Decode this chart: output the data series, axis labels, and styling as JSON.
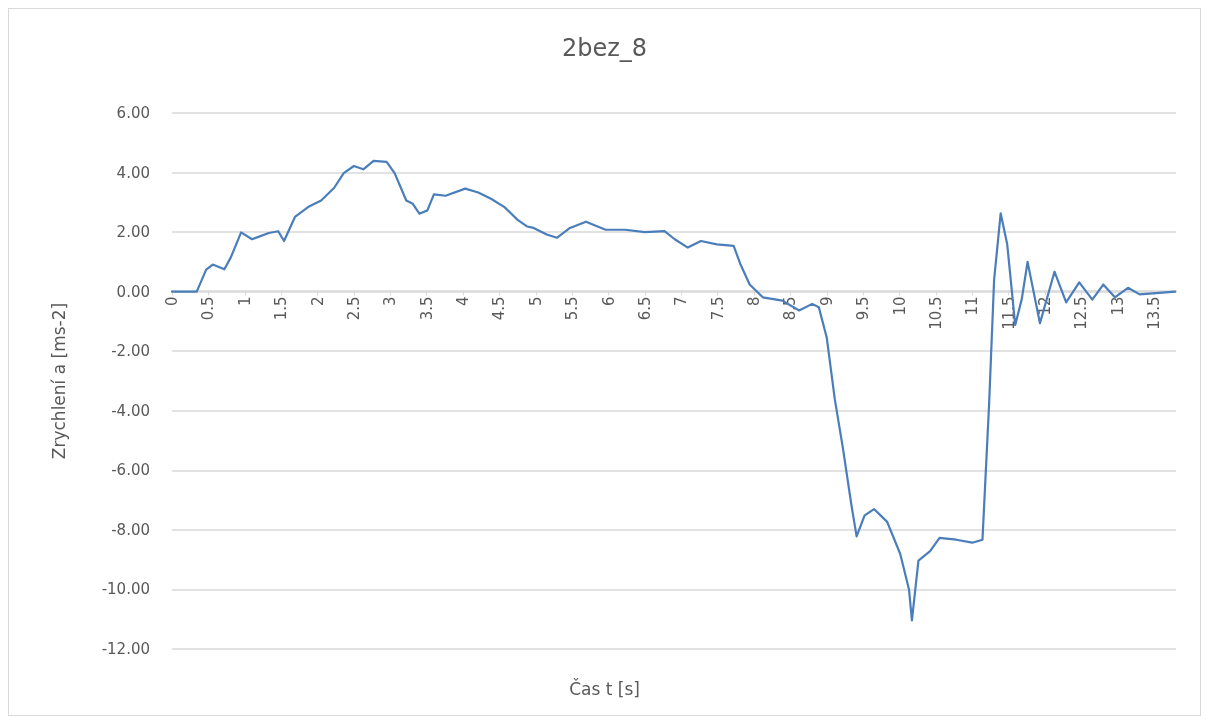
{
  "chart_data": {
    "type": "line",
    "title": "2bez_8",
    "xlabel": "Čas t [s]",
    "ylabel": "Zrychlení a [ms-2]",
    "xlim": [
      0,
      13.8
    ],
    "xticks": [
      0,
      0.5,
      1,
      1.5,
      2,
      2.5,
      3,
      3.5,
      4,
      4.5,
      5,
      5.5,
      6,
      6.5,
      7,
      7.5,
      8,
      8.5,
      9,
      9.5,
      10,
      10.5,
      11,
      11.5,
      12,
      12.5,
      13,
      13.5
    ],
    "ylim": [
      -12,
      6
    ],
    "yticks": [
      {
        "value": -12,
        "label": "-12.00"
      },
      {
        "value": -10,
        "label": "-10.00"
      },
      {
        "value": -8,
        "label": "-8.00"
      },
      {
        "value": -6,
        "label": "-6.00"
      },
      {
        "value": -4,
        "label": "-4.00"
      },
      {
        "value": -2,
        "label": "-2.00"
      },
      {
        "value": 0,
        "label": "0.00"
      },
      {
        "value": 2,
        "label": "2.00"
      },
      {
        "value": 4,
        "label": "4.00"
      },
      {
        "value": 6,
        "label": "6.00"
      }
    ],
    "grid": "y",
    "marker": "none",
    "line_style": "solid",
    "series": [
      {
        "color": "#4a7ebb",
        "x": [
          0,
          0.34,
          0.47,
          0.56,
          0.72,
          0.81,
          0.95,
          1.1,
          1.33,
          1.46,
          1.54,
          1.69,
          1.87,
          2.05,
          2.23,
          2.36,
          2.5,
          2.63,
          2.77,
          2.95,
          3.06,
          3.22,
          3.31,
          3.4,
          3.51,
          3.6,
          3.76,
          4.03,
          4.21,
          4.39,
          4.57,
          4.75,
          4.88,
          4.97,
          5.15,
          5.29,
          5.47,
          5.69,
          5.96,
          6.23,
          6.5,
          6.77,
          6.91,
          7.09,
          7.27,
          7.49,
          7.72,
          7.81,
          7.94,
          8.12,
          8.39,
          8.62,
          8.8,
          8.89,
          9.0,
          9.11,
          9.22,
          9.34,
          9.41,
          9.52,
          9.65,
          9.83,
          10.01,
          10.13,
          10.17,
          10.26,
          10.42,
          10.55,
          10.78,
          11.0,
          11.14,
          11.18,
          11.23,
          11.3,
          11.39,
          11.48,
          11.59,
          11.68,
          11.76,
          11.93,
          12.13,
          12.29,
          12.47,
          12.65,
          12.8,
          12.96,
          13.14,
          13.3,
          13.79
        ],
        "values": [
          0,
          0,
          0.74,
          0.91,
          0.75,
          1.16,
          1.99,
          1.76,
          1.97,
          2.03,
          1.7,
          2.51,
          2.84,
          3.06,
          3.49,
          3.98,
          4.22,
          4.11,
          4.39,
          4.36,
          3.98,
          3.06,
          2.95,
          2.62,
          2.73,
          3.27,
          3.22,
          3.46,
          3.33,
          3.11,
          2.84,
          2.41,
          2.19,
          2.14,
          1.92,
          1.81,
          2.14,
          2.35,
          2.08,
          2.08,
          2.0,
          2.03,
          1.76,
          1.48,
          1.7,
          1.59,
          1.54,
          0.94,
          0.24,
          -0.19,
          -0.3,
          -0.63,
          -0.41,
          -0.52,
          -1.55,
          -3.61,
          -5.23,
          -7.19,
          -8.22,
          -7.51,
          -7.3,
          -7.73,
          -8.81,
          -10.0,
          -11.04,
          -9.03,
          -8.71,
          -8.27,
          -8.33,
          -8.43,
          -8.33,
          -6.32,
          -3.83,
          0.4,
          2.63,
          1.59,
          -1.12,
          -0.25,
          1.0,
          -1.06,
          0.67,
          -0.36,
          0.31,
          -0.27,
          0.24,
          -0.19,
          0.13,
          -0.09,
          0.0
        ]
      }
    ]
  }
}
